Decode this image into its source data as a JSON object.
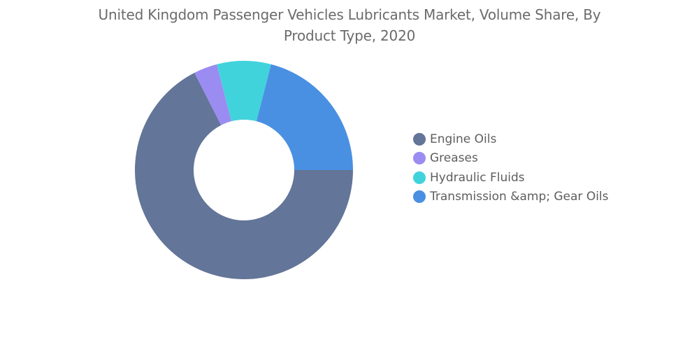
{
  "chart_data": {
    "type": "pie",
    "title_line1": "United Kingdom Passenger Vehicles Lubricants Market, Volume Share, By",
    "title_line2": "Product Type, 2020",
    "donut": true,
    "legend_position": "right",
    "categories": [
      "Engine Oils",
      "Greases",
      "Hydraulic Fluids",
      "Transmission &amp; Gear Oils"
    ],
    "values": [
      67.5,
      3.5,
      8.0,
      21.0
    ],
    "unit": "%",
    "colors": [
      "#637598",
      "#9b8cf2",
      "#41d3dc",
      "#4a90e2"
    ]
  }
}
